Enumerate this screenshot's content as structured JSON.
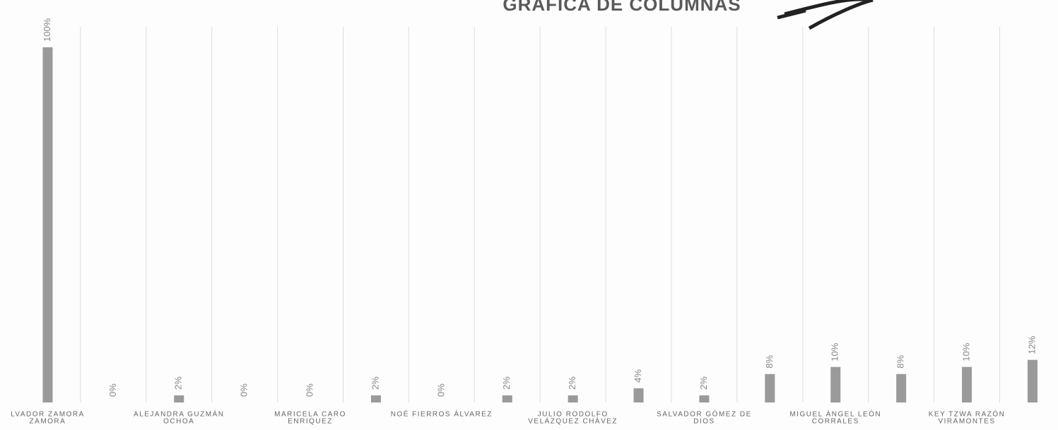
{
  "chart_data": {
    "type": "bar",
    "title": "GRAFICA DE COLUMNAS",
    "categories": [
      [
        "LVADOR ZAMORA",
        "ZAMORA"
      ],
      null,
      [
        "ALEJANDRA GUZMÁN",
        "OCHOA"
      ],
      null,
      [
        "MARICELA CARO",
        "ENRIQUEZ"
      ],
      null,
      [
        "NOÉ FIERROS ÁLVAREZ"
      ],
      null,
      [
        "JULIO RODOLFO",
        "VELÁZQUEZ CHÁVEZ"
      ],
      null,
      [
        "SALVADOR GÓMEZ DE",
        "DIOS"
      ],
      null,
      [
        "MIGUEL ÁNGEL LEÓN",
        "CORRALES"
      ],
      null,
      [
        "KEY TZWA RAZÓN",
        "VIRAMONTES"
      ],
      null
    ],
    "values": [
      100,
      0,
      2,
      0,
      0,
      2,
      0,
      2,
      2,
      4,
      2,
      8,
      10,
      8,
      10,
      12
    ],
    "value_labels": [
      "100%",
      "0%",
      "2%",
      "0%",
      "0%",
      "2%",
      "0%",
      "2%",
      "2%",
      "4%",
      "2%",
      "8%",
      "10%",
      "8%",
      "10%",
      "12%"
    ],
    "color": "#9a9a9a",
    "ylim": [
      0,
      100
    ]
  }
}
